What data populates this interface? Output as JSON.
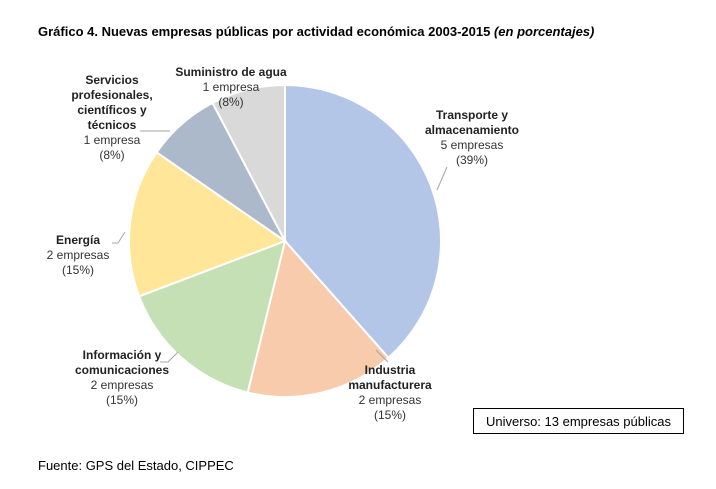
{
  "title": {
    "main": "Gráfico 4. Nuevas empresas públicas por actividad económica 2003-2015",
    "italic": "(en porcentajes)"
  },
  "chart_data": {
    "type": "pie",
    "title": "Gráfico 4. Nuevas empresas públicas por actividad económica 2003-2015 (en porcentajes)",
    "slices": [
      {
        "name": "Transporte y almacenamiento",
        "name_lines": [
          "Transporte y",
          "almacenamiento"
        ],
        "count": 5,
        "count_label": "5 empresas",
        "percent": 39,
        "percent_label": "(39%)",
        "color": "#b4c6e7"
      },
      {
        "name": "Industria manufacturera",
        "name_lines": [
          "Industria",
          "manufacturera"
        ],
        "count": 2,
        "count_label": "2 empresas",
        "percent": 15,
        "percent_label": "(15%)",
        "color": "#f8cbad"
      },
      {
        "name": "Información y comunicaciones",
        "name_lines": [
          "Información y",
          "comunicaciones"
        ],
        "count": 2,
        "count_label": "2 empresas",
        "percent": 15,
        "percent_label": "(15%)",
        "color": "#c5e0b4"
      },
      {
        "name": "Energía",
        "name_lines": [
          "Energía"
        ],
        "count": 2,
        "count_label": "2 empresas",
        "percent": 15,
        "percent_label": "(15%)",
        "color": "#ffe699"
      },
      {
        "name": "Servicios profesionales, científicos y técnicos",
        "name_lines": [
          "Servicios",
          "profesionales,",
          "científicos y",
          "técnicos"
        ],
        "count": 1,
        "count_label": "1 empresa",
        "percent": 8,
        "percent_label": "(8%)",
        "color": "#acb9ca"
      },
      {
        "name": "Suministro de agua",
        "name_lines": [
          "Suministro de agua"
        ],
        "count": 1,
        "count_label": "1 empresa",
        "percent": 8,
        "percent_label": "(8%)",
        "color": "#d9d9d9"
      }
    ]
  },
  "universe_label": "Universo: 13 empresas públicas",
  "source_label": "Fuente: GPS del Estado, CIPPEC"
}
